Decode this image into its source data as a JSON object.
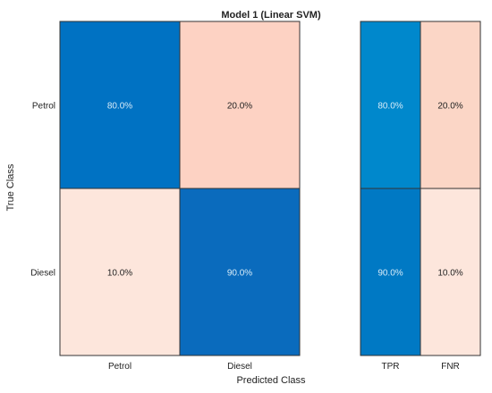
{
  "chart_data": {
    "type": "heatmap",
    "title": "Model 1 (Linear SVM)",
    "xlabel": "Predicted Class",
    "ylabel": "True Class",
    "rows": [
      "Petrol",
      "Diesel"
    ],
    "cols": [
      "Petrol",
      "Diesel"
    ],
    "matrix": [
      [
        "80.0%",
        "20.0%"
      ],
      [
        "10.0%",
        "90.0%"
      ]
    ],
    "matrix_kinds": [
      [
        "correct",
        "error"
      ],
      [
        "error",
        "correct"
      ]
    ],
    "summary_cols": [
      "TPR",
      "FNR"
    ],
    "summary": [
      [
        "80.0%",
        "20.0%"
      ],
      [
        "90.0%",
        "10.0%"
      ]
    ],
    "summary_kinds": [
      [
        "tpr",
        "fnr"
      ],
      [
        "tpr",
        "fnr"
      ]
    ],
    "colors": {
      "correct": "#0072c3",
      "correct_high": "#0a6bbd",
      "error": "#fdd2c3",
      "error_light": "#fde6dc",
      "tpr": "#0088cc",
      "tpr_high": "#0079c4",
      "fnr": "#fbd6c6",
      "fnr_light": "#fde6dc",
      "light_text": "#d8ecf8",
      "dark_text": "#222222"
    }
  }
}
